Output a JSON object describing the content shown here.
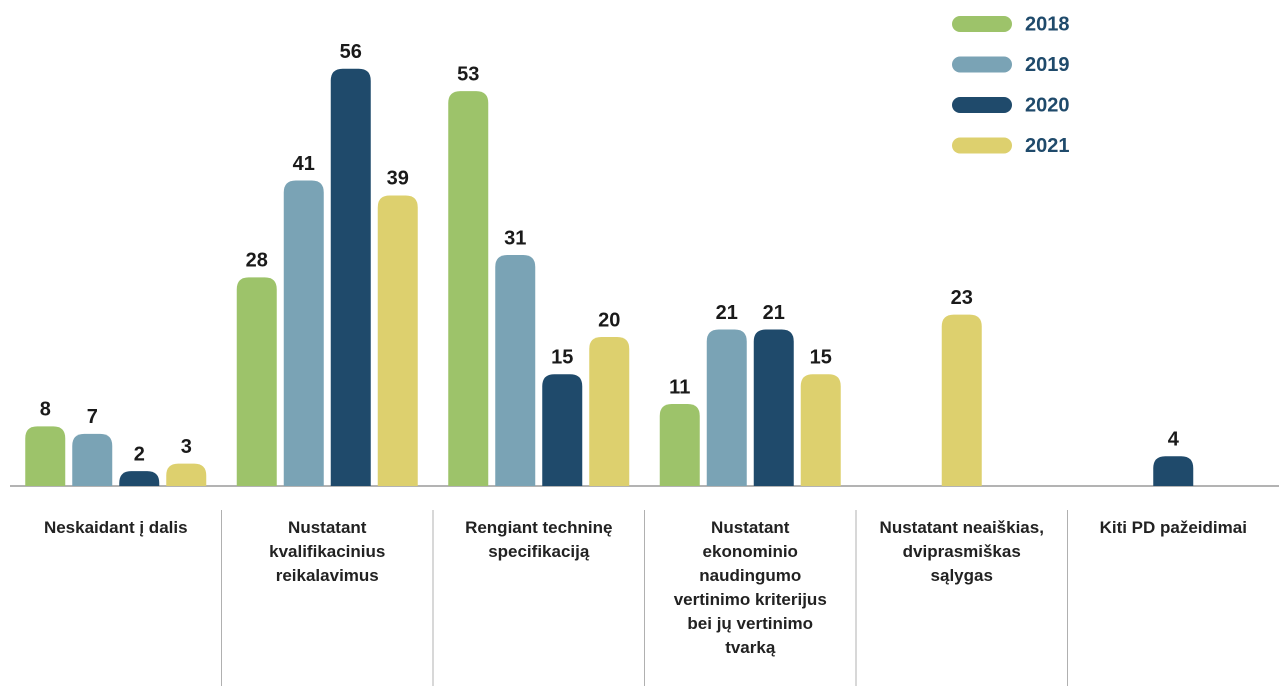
{
  "chart_data": {
    "type": "bar",
    "categories": [
      "Neskaidant į dalis",
      "Nustatant kvalifikacinius reikalavimus",
      "Rengiant techninę specifikaciją",
      "Nustatant ekonominio naudingumo vertinimo kriterijus bei jų vertinimo tvarką",
      "Nustatant neaiškias, dviprasmiškas sąlygas",
      "Kiti PD pažeidimai"
    ],
    "series": [
      {
        "name": "2018",
        "color": "#9dc36a",
        "values": [
          8,
          28,
          53,
          11,
          null,
          null
        ]
      },
      {
        "name": "2019",
        "color": "#7aa3b5",
        "values": [
          7,
          41,
          31,
          21,
          null,
          null
        ]
      },
      {
        "name": "2020",
        "color": "#1f4a6b",
        "values": [
          2,
          56,
          15,
          21,
          null,
          4
        ]
      },
      {
        "name": "2021",
        "color": "#ddd06e",
        "values": [
          3,
          39,
          20,
          15,
          23,
          null
        ]
      }
    ],
    "ylim": [
      0,
      60
    ],
    "legend": "top-right"
  }
}
